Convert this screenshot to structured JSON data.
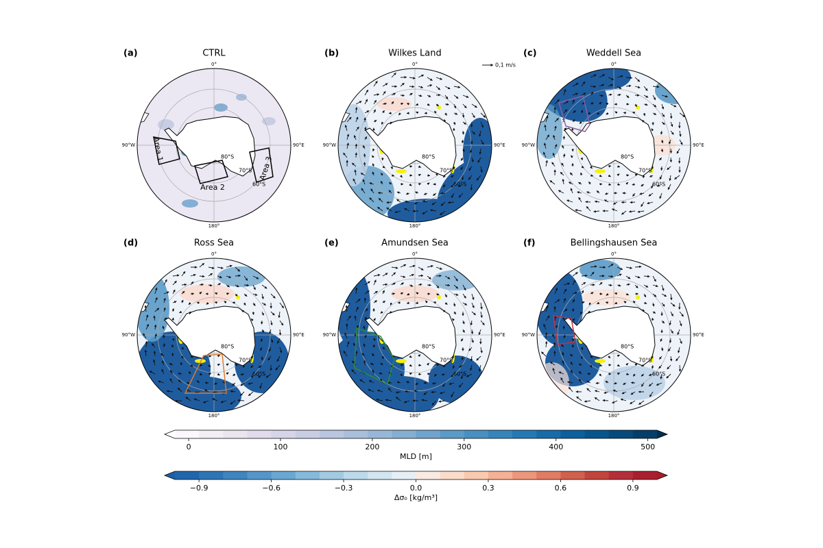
{
  "chart_data": {
    "type": "map",
    "panels": [
      {
        "label": "(a)",
        "title": "CTRL"
      },
      {
        "label": "(b)",
        "title": "Wilkes Land"
      },
      {
        "label": "(c)",
        "title": "Weddell Sea"
      },
      {
        "label": "(d)",
        "title": "Ross Sea"
      },
      {
        "label": "(e)",
        "title": "Amundsen Sea"
      },
      {
        "label": "(f)",
        "title": "Bellingshausen Sea"
      }
    ],
    "grid_labels": {
      "lon": [
        "0°",
        "90°W",
        "90°E",
        "180°"
      ],
      "lat": [
        "80°S",
        "70°S",
        "60°S"
      ]
    },
    "areas": [
      "Area 1",
      "Area 2",
      "Area 3"
    ],
    "vector_key": "0,1 m/s",
    "colorbars": [
      {
        "label": "MLD [m]",
        "lim": [
          -15,
          510
        ],
        "ticks": [
          0,
          100,
          200,
          300,
          400,
          500
        ],
        "extend_colors": [
          "#ffffff",
          "#022f4f"
        ],
        "colors": [
          "#fbf8fc",
          "#f3eef6",
          "#ebe5f0",
          "#e0dcec",
          "#d5d4e8",
          "#c8cde4",
          "#bac6e0",
          "#a9bfdc",
          "#98b7d8",
          "#85aed3",
          "#70a4cd",
          "#5b9bc7",
          "#4890c1",
          "#3585bb",
          "#2379b4",
          "#166ca9",
          "#0c609d",
          "#07558d",
          "#064a7b",
          "#053e69"
        ]
      },
      {
        "label": "Δσ₀ [kg/m³]",
        "lim": [
          -1.0,
          1.0
        ],
        "ticks": [
          {
            "value": -0.9,
            "label": "−0.9"
          },
          {
            "value": -0.6,
            "label": "−0.6"
          },
          {
            "value": -0.3,
            "label": "−0.3"
          },
          {
            "value": 0,
            "label": "0.0"
          },
          0.3,
          0.6,
          0.9
        ],
        "extend_colors": [
          "#1d5ea6",
          "#ad1a2c"
        ],
        "colors": [
          "#2166ac",
          "#2f75b5",
          "#3f85be",
          "#5496c8",
          "#6aa7d1",
          "#86b9da",
          "#a2cbe3",
          "#bcdaeb",
          "#d2e5f0",
          "#e6eff6",
          "#f9ebe3",
          "#fbdcca",
          "#f9c9b0",
          "#f5b196",
          "#ec977c",
          "#e07c65",
          "#d1604f",
          "#c0453d",
          "#b3303a",
          "#a8202f"
        ]
      }
    ]
  }
}
